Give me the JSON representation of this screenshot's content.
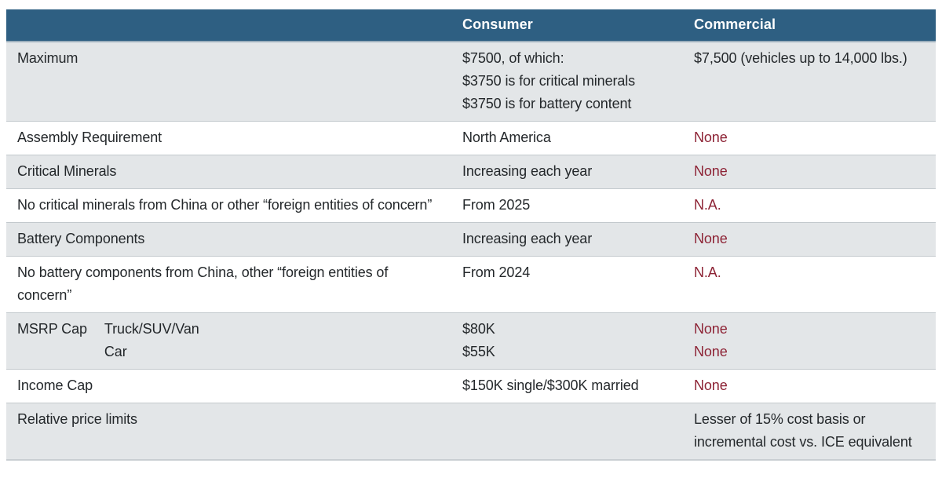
{
  "table": {
    "header": {
      "label_col": "",
      "consumer": "Consumer",
      "commercial": "Commercial"
    },
    "rows": [
      {
        "label": "Maximum",
        "sublabel": [],
        "consumer": [
          "$7500, of which:",
          "$3750 is for critical minerals",
          "$3750 is for battery content"
        ],
        "commercial": [
          "$7,500 (vehicles up to 14,000 lbs.)"
        ],
        "commercial_red": false
      },
      {
        "label": "Assembly Requirement",
        "sublabel": [],
        "consumer": [
          "North America"
        ],
        "commercial": [
          "None"
        ],
        "commercial_red": true
      },
      {
        "label": "Critical Minerals",
        "sublabel": [],
        "consumer": [
          "Increasing each year"
        ],
        "commercial": [
          "None"
        ],
        "commercial_red": true
      },
      {
        "label": "No critical minerals from China or other “foreign entities of concern”",
        "sublabel": [],
        "consumer": [
          "From 2025"
        ],
        "commercial": [
          "N.A."
        ],
        "commercial_red": true
      },
      {
        "label": "Battery Components",
        "sublabel": [],
        "consumer": [
          "Increasing each year"
        ],
        "commercial": [
          "None"
        ],
        "commercial_red": true
      },
      {
        "label": "No battery components from China, other “foreign entities of concern”",
        "sublabel": [],
        "consumer": [
          "From 2024"
        ],
        "commercial": [
          "N.A."
        ],
        "commercial_red": true
      },
      {
        "label": "MSRP Cap",
        "sublabel": [
          "Truck/SUV/Van",
          "Car"
        ],
        "consumer": [
          "$80K",
          "$55K"
        ],
        "commercial": [
          "None",
          "None"
        ],
        "commercial_red": true
      },
      {
        "label": "Income Cap",
        "sublabel": [],
        "consumer": [
          "$150K single/$300K married"
        ],
        "commercial": [
          "None"
        ],
        "commercial_red": true
      },
      {
        "label": "Relative price limits",
        "sublabel": [],
        "consumer": [],
        "commercial": [
          "Lesser of 15% cost basis or incremental cost vs. ICE equivalent"
        ],
        "commercial_red": false
      }
    ]
  },
  "colors": {
    "header_bg": "#2e5f82",
    "header_text": "#ffffff",
    "stripe_row_bg": "#e3e6e8",
    "plain_row_bg": "#ffffff",
    "body_text": "#24282b",
    "negative_value_text": "#8d2335",
    "row_divider": "#c3c9cd"
  }
}
